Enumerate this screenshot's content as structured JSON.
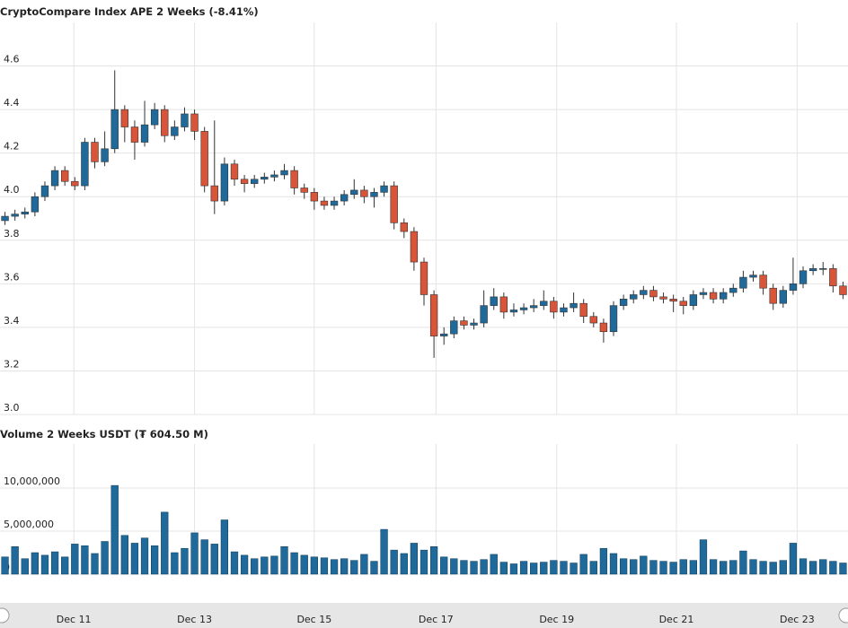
{
  "chart_data": [
    {
      "type": "candlestick",
      "title": "CryptoCompare Index APE 2 Weeks (-8.41%)",
      "open": [
        3.89,
        3.91,
        3.92,
        3.93,
        4.0,
        4.05,
        4.12,
        4.07,
        4.05,
        4.25,
        4.16,
        4.22,
        4.4,
        4.32,
        4.25,
        4.33,
        4.4,
        4.28,
        4.32,
        4.38,
        4.3,
        4.05,
        3.98,
        4.15,
        4.08,
        4.06,
        4.08,
        4.09,
        4.1,
        4.12,
        4.04,
        4.02,
        3.98,
        3.96,
        3.98,
        4.01,
        4.03,
        4.0,
        4.02,
        4.05,
        3.88,
        3.84,
        3.7,
        3.55,
        3.36,
        3.37,
        3.43,
        3.41,
        3.42,
        3.5,
        3.54,
        3.47,
        3.48,
        3.49,
        3.5,
        3.52,
        3.47,
        3.49,
        3.51,
        3.45,
        3.42,
        3.38,
        3.5,
        3.53,
        3.55,
        3.57,
        3.54,
        3.53,
        3.52,
        3.5,
        3.55,
        3.56,
        3.53,
        3.56,
        3.58,
        3.63,
        3.64,
        3.58,
        3.51,
        3.57,
        3.6,
        3.66,
        3.67,
        3.67,
        3.59
      ],
      "high": [
        3.93,
        3.94,
        3.95,
        4.02,
        4.07,
        4.14,
        4.14,
        4.09,
        4.27,
        4.27,
        4.3,
        4.58,
        4.42,
        4.35,
        4.44,
        4.43,
        4.42,
        4.35,
        4.41,
        4.4,
        4.32,
        4.35,
        4.18,
        4.17,
        4.1,
        4.1,
        4.11,
        4.12,
        4.15,
        4.14,
        4.06,
        4.04,
        4.0,
        4.0,
        4.03,
        4.08,
        4.05,
        4.04,
        4.07,
        4.07,
        3.9,
        3.86,
        3.72,
        3.57,
        3.4,
        3.45,
        3.45,
        3.44,
        3.57,
        3.58,
        3.56,
        3.51,
        3.51,
        3.53,
        3.57,
        3.54,
        3.51,
        3.56,
        3.53,
        3.47,
        3.44,
        3.52,
        3.55,
        3.57,
        3.59,
        3.59,
        3.56,
        3.55,
        3.54,
        3.57,
        3.58,
        3.58,
        3.58,
        3.6,
        3.66,
        3.66,
        3.66,
        3.6,
        3.59,
        3.72,
        3.68,
        3.69,
        3.7,
        3.69,
        3.61
      ],
      "low": [
        3.87,
        3.89,
        3.9,
        3.91,
        3.98,
        4.03,
        4.05,
        4.03,
        4.03,
        4.13,
        4.14,
        4.2,
        4.25,
        4.17,
        4.23,
        4.31,
        4.25,
        4.26,
        4.3,
        4.26,
        4.02,
        3.92,
        3.96,
        4.05,
        4.02,
        4.04,
        4.06,
        4.07,
        4.08,
        4.01,
        3.99,
        3.94,
        3.94,
        3.94,
        3.96,
        3.99,
        3.97,
        3.95,
        4.0,
        3.85,
        3.81,
        3.66,
        3.5,
        3.26,
        3.32,
        3.35,
        3.39,
        3.39,
        3.4,
        3.48,
        3.44,
        3.45,
        3.46,
        3.47,
        3.48,
        3.44,
        3.45,
        3.47,
        3.42,
        3.4,
        3.33,
        3.36,
        3.48,
        3.51,
        3.53,
        3.52,
        3.51,
        3.47,
        3.46,
        3.48,
        3.53,
        3.51,
        3.51,
        3.54,
        3.56,
        3.61,
        3.55,
        3.48,
        3.49,
        3.55,
        3.58,
        3.64,
        3.64,
        3.56,
        3.53
      ],
      "close": [
        3.91,
        3.92,
        3.93,
        4.0,
        4.05,
        4.12,
        4.07,
        4.05,
        4.25,
        4.16,
        4.22,
        4.4,
        4.32,
        4.25,
        4.33,
        4.4,
        4.28,
        4.32,
        4.38,
        4.3,
        4.05,
        3.98,
        4.15,
        4.08,
        4.06,
        4.08,
        4.09,
        4.1,
        4.12,
        4.04,
        4.02,
        3.98,
        3.96,
        3.98,
        4.01,
        4.03,
        4.0,
        4.02,
        4.05,
        3.88,
        3.84,
        3.7,
        3.55,
        3.36,
        3.37,
        3.43,
        3.41,
        3.42,
        3.5,
        3.54,
        3.47,
        3.48,
        3.49,
        3.5,
        3.52,
        3.47,
        3.49,
        3.51,
        3.45,
        3.42,
        3.38,
        3.5,
        3.53,
        3.55,
        3.57,
        3.54,
        3.53,
        3.52,
        3.5,
        3.55,
        3.56,
        3.53,
        3.56,
        3.58,
        3.63,
        3.64,
        3.58,
        3.51,
        3.57,
        3.6,
        3.66,
        3.67,
        3.67,
        3.59,
        3.55
      ],
      "up_color": "#1f6a9a",
      "down_color": "#d8553a",
      "xlim": [
        -0.5,
        84.5
      ],
      "xticks": [
        {
          "value": 6.9,
          "label": "Dec 11"
        },
        {
          "value": 19.0,
          "label": "Dec 13"
        },
        {
          "value": 31.0,
          "label": "Dec 15"
        },
        {
          "value": 43.2,
          "label": "Dec 17"
        },
        {
          "value": 55.3,
          "label": "Dec 19"
        },
        {
          "value": 67.3,
          "label": "Dec 21"
        },
        {
          "value": 79.4,
          "label": "Dec 23"
        }
      ],
      "ylim": [
        3,
        4.8
      ],
      "yticks": [
        {
          "value": 3,
          "label": "3.0"
        },
        3.2,
        3.4,
        3.6,
        3.8,
        {
          "value": 4,
          "label": "4.0"
        },
        4.2,
        4.4,
        4.6
      ],
      "grid": true
    },
    {
      "type": "bar",
      "title": "Volume 2 Weeks USDT (₮ 604.50 M)",
      "values": [
        2000000,
        3200000,
        1800000,
        2500000,
        2200000,
        2600000,
        2000000,
        3500000,
        3300000,
        2400000,
        3800000,
        10300000,
        4500000,
        3600000,
        4200000,
        3300000,
        7200000,
        2500000,
        3000000,
        4800000,
        4000000,
        3500000,
        6300000,
        2600000,
        2200000,
        1800000,
        2000000,
        2100000,
        3200000,
        2500000,
        2200000,
        2000000,
        1900000,
        1700000,
        1800000,
        1600000,
        2300000,
        1500000,
        5200000,
        2800000,
        2400000,
        3600000,
        2800000,
        3200000,
        2000000,
        1800000,
        1600000,
        1500000,
        1700000,
        2300000,
        1400000,
        1200000,
        1500000,
        1300000,
        1400000,
        1600000,
        1500000,
        1300000,
        2300000,
        1500000,
        3000000,
        2400000,
        1800000,
        1700000,
        2100000,
        1600000,
        1500000,
        1400000,
        1700000,
        1600000,
        4000000,
        1700000,
        1500000,
        1600000,
        2700000,
        1700000,
        1500000,
        1400000,
        1600000,
        3600000,
        1800000,
        1500000,
        1700000,
        1500000,
        1300000
      ],
      "color": "#1f6a9a",
      "ylim": [
        0,
        15100000
      ],
      "yticks": [
        0,
        {
          "value": 5000000,
          "label": "5,000,000"
        },
        {
          "value": 10000000,
          "label": "10,000,000"
        }
      ],
      "grid": true
    }
  ]
}
